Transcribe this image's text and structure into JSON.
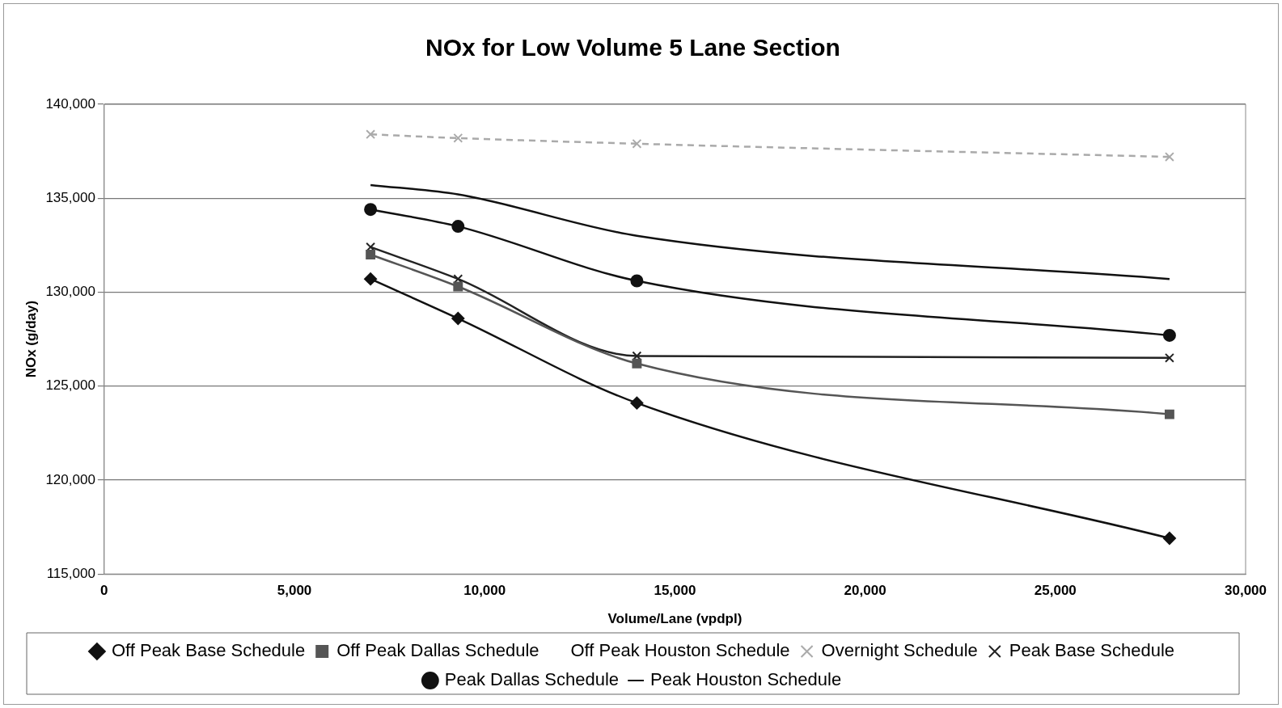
{
  "chart_data": {
    "type": "line",
    "title": "NOx for Low Volume 5 Lane Section",
    "xlabel": "Volume/Lane (vpdpl)",
    "ylabel": "NOx (g/day)",
    "x": [
      7000,
      9300,
      14000,
      28000
    ],
    "xlim": [
      0,
      30000
    ],
    "xticks": [
      {
        "value": 0,
        "label": "0"
      },
      {
        "value": 5000,
        "label": "5,000"
      },
      {
        "value": 10000,
        "label": "10,000"
      },
      {
        "value": 15000,
        "label": "15,000"
      },
      {
        "value": 20000,
        "label": "20,000"
      },
      {
        "value": 25000,
        "label": "25,000"
      },
      {
        "value": 30000,
        "label": "30,000"
      }
    ],
    "ylim": [
      115000,
      140000
    ],
    "yticks": [
      {
        "value": 115000,
        "label": "115,000"
      },
      {
        "value": 120000,
        "label": "120,000"
      },
      {
        "value": 125000,
        "label": "125,000"
      },
      {
        "value": 130000,
        "label": "130,000"
      },
      {
        "value": 135000,
        "label": "135,000"
      },
      {
        "value": 140000,
        "label": "140,000"
      }
    ],
    "grid": "y",
    "legend": "bottom",
    "series": [
      {
        "name": "Off Peak Base Schedule",
        "color": "#111111",
        "marker": "diamond",
        "line_style": "solid",
        "values": [
          130700,
          128600,
          124100,
          116900
        ]
      },
      {
        "name": "Off Peak Dallas Schedule",
        "color": "#555555",
        "marker": "square",
        "line_style": "solid",
        "values": [
          132000,
          130300,
          126200,
          123500
        ]
      },
      {
        "name": "Off Peak Houston Schedule",
        "marker": "none",
        "line_style": "solid",
        "values": [
          null,
          null,
          null,
          null
        ]
      },
      {
        "name": "Overnight Schedule",
        "color": "#aaaaaa",
        "marker": "cross",
        "line_style": "dashed",
        "values": [
          138400,
          138200,
          137900,
          137200
        ]
      },
      {
        "name": "Peak Base Schedule",
        "color": "#222222",
        "marker": "cross",
        "line_style": "solid",
        "values": [
          132400,
          130700,
          126600,
          126500
        ]
      },
      {
        "name": "Peak Dallas Schedule",
        "color": "#111111",
        "marker": "circle",
        "line_style": "solid",
        "values": [
          134400,
          133500,
          130600,
          127700
        ]
      },
      {
        "name": "Peak Houston Schedule",
        "color": "#111111",
        "marker": "none",
        "line_style": "solid",
        "values": [
          135700,
          135200,
          133000,
          130700
        ]
      }
    ]
  }
}
